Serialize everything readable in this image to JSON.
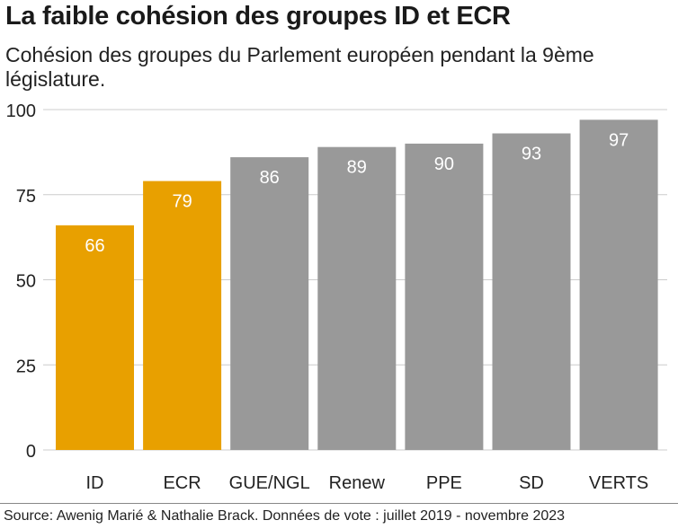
{
  "title": "La faible cohésion des groupes ID et ECR",
  "subtitle": "Cohésion des groupes du Parlement européen pendant la 9ème législature.",
  "source": "Source: Awenig Marié & Nathalie Brack. Données de vote : juillet 2019 - novembre 2023",
  "colors": {
    "highlight": "#E8A000",
    "default": "#999999",
    "grid": "#cccccc",
    "label": "#ffffff"
  },
  "chart_data": {
    "type": "bar",
    "title": "La faible cohésion des groupes ID et ECR",
    "subtitle": "Cohésion des groupes du Parlement européen pendant la 9ème législature.",
    "xlabel": "",
    "ylabel": "",
    "categories": [
      "ID",
      "ECR",
      "GUE/NGL",
      "Renew",
      "PPE",
      "SD",
      "VERTS"
    ],
    "values": [
      66,
      79,
      86,
      89,
      90,
      93,
      97
    ],
    "highlighted": [
      "ID",
      "ECR"
    ],
    "ylim": [
      0,
      100
    ],
    "yticks": [
      0,
      25,
      50,
      75,
      100
    ],
    "grid": true,
    "data_labels": true
  }
}
